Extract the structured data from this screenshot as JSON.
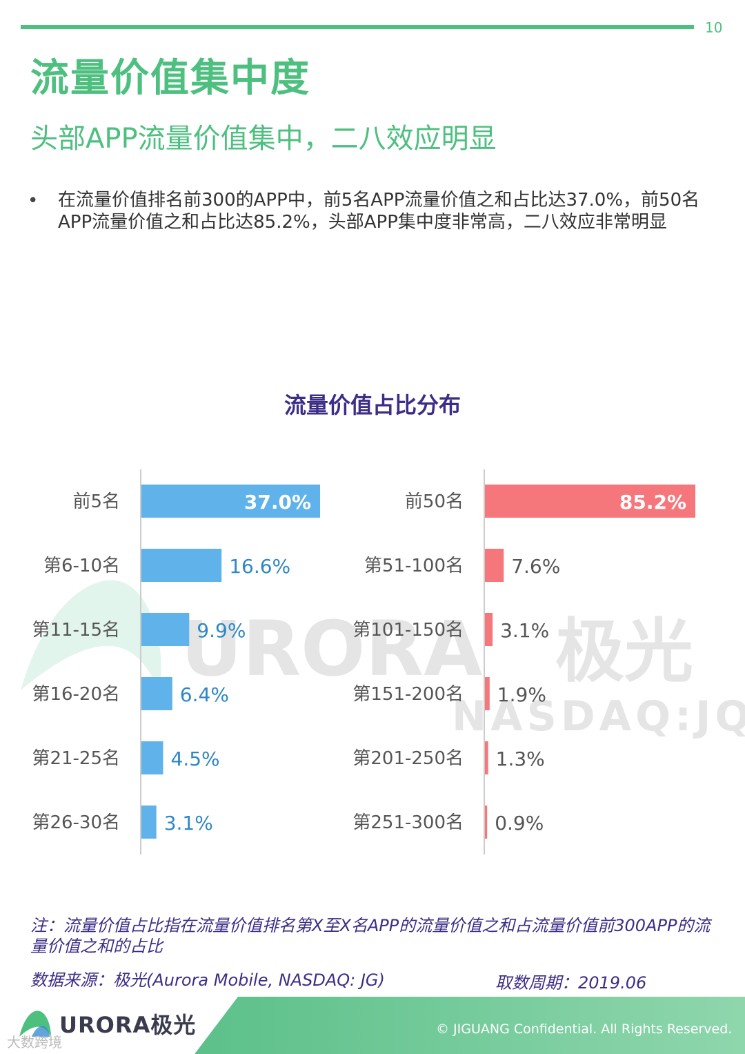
{
  "page": {
    "number": "10",
    "title": "流量价值集中度",
    "subtitle": "头部APP流量价值集中，二八效应明显",
    "bullet_marker": "•",
    "bullet": "在流量价值排名前300的APP中，前5名APP流量价值之和占比达37.0%，前50名APP流量价值之和占比达85.2%，头部APP集中度非常高，二八效应非常明显",
    "note": "注：流量价值占比指在流量价值排名第X至X名APP的流量价值之和占流量价值前300APP的流量价值之和的占比",
    "source": "数据来源：极光(Aurora Mobile, NASDAQ: JG)",
    "period": "取数周期：2019.06",
    "brand": "URORA极光",
    "copyright": "© JIGUANG Confidential. All Rights Reserved.",
    "corner_watermark": "大数跨境",
    "watermark_main": "URORA极光",
    "watermark_sub": "NASDAQ:JQ"
  },
  "colors": {
    "accent_green": "#4dbf7f",
    "title_purple": "#3b2e86",
    "bar_blue": "#5fb3ea",
    "label_blue": "#2e87c4",
    "bar_red": "#f5777c"
  },
  "chart_data": [
    {
      "type": "bar",
      "orientation": "horizontal",
      "title": "流量价值占比分布",
      "categories": [
        "前5名",
        "第6-10名",
        "第11-15名",
        "第16-20名",
        "第21-25名",
        "第26-30名"
      ],
      "values": [
        37.0,
        16.6,
        9.9,
        6.4,
        4.5,
        3.1
      ],
      "labels": [
        "37.0%",
        "16.6%",
        "9.9%",
        "6.4%",
        "4.5%",
        "3.1%"
      ],
      "unit": "%"
    },
    {
      "type": "bar",
      "orientation": "horizontal",
      "categories": [
        "前50名",
        "第51-100名",
        "第101-150名",
        "第151-200名",
        "第201-250名",
        "第251-300名"
      ],
      "values": [
        85.2,
        7.6,
        3.1,
        1.9,
        1.3,
        0.9
      ],
      "labels": [
        "85.2%",
        "7.6%",
        "3.1%",
        "1.9%",
        "1.3%",
        "0.9%"
      ],
      "unit": "%"
    }
  ]
}
